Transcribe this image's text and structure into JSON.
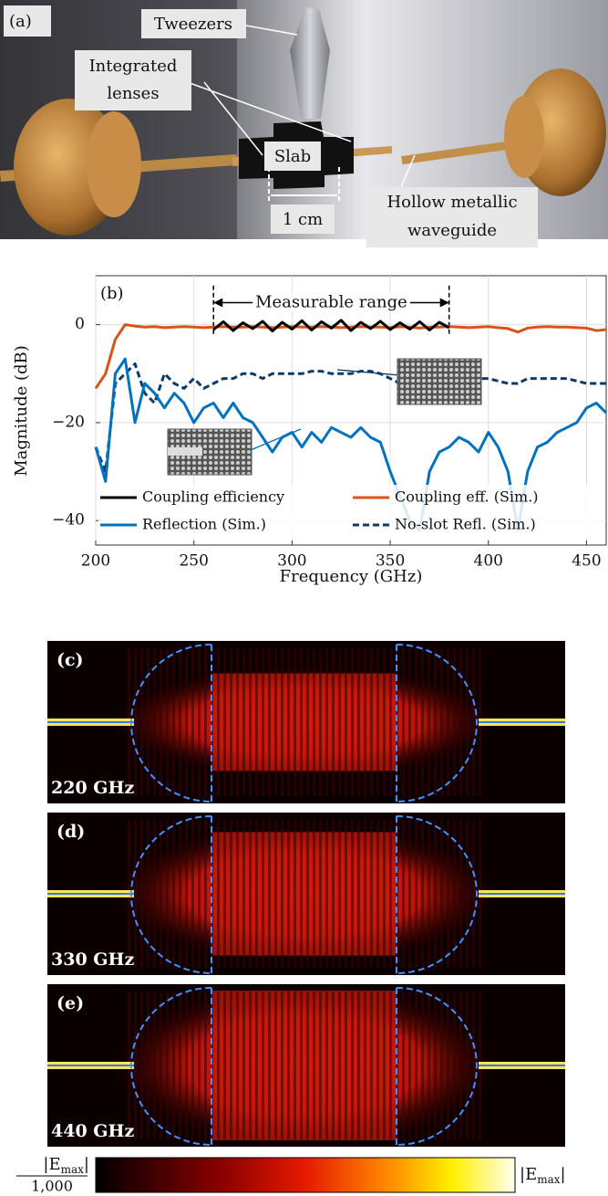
{
  "photo": {
    "panel_label": "(a)",
    "tweezers": "Tweezers",
    "lenses": [
      "Integrated",
      "lenses"
    ],
    "slab": "Slab",
    "scale": "1 cm",
    "waveguide": [
      "Hollow metallic",
      "waveguide"
    ]
  },
  "chart_data": {
    "type": "line",
    "panel_label": "(b)",
    "x_label": "Frequency (GHz)",
    "y_label": "Magnitude (dB)",
    "xlim": [
      200,
      460
    ],
    "xticks": [
      200,
      250,
      300,
      350,
      400,
      450
    ],
    "ylim": [
      -45,
      10
    ],
    "yticks": [
      {
        "value": -40,
        "label": "−40"
      },
      {
        "value": -20,
        "label": "−20"
      },
      0
    ],
    "grid": true,
    "legend": "lower center",
    "range_annotation": {
      "label": "Measurable range",
      "x": [
        260,
        380
      ]
    },
    "x": [
      200,
      205,
      210,
      215,
      220,
      225,
      230,
      235,
      240,
      245,
      250,
      255,
      260,
      265,
      270,
      275,
      280,
      285,
      290,
      295,
      300,
      305,
      310,
      315,
      320,
      325,
      330,
      335,
      340,
      345,
      350,
      355,
      360,
      365,
      370,
      375,
      380,
      385,
      390,
      395,
      400,
      405,
      410,
      415,
      420,
      425,
      430,
      435,
      440,
      445,
      450,
      455,
      460
    ],
    "series": [
      {
        "name": "Coupling efficiency",
        "color": "#000000",
        "linestyle": "solid",
        "values": [
          null,
          null,
          null,
          null,
          null,
          null,
          null,
          null,
          null,
          null,
          null,
          null,
          -1,
          0.6,
          -1.2,
          0.4,
          -0.8,
          0.7,
          -1.3,
          0.5,
          -0.9,
          0.8,
          -1.1,
          0.6,
          -0.7,
          0.9,
          -1.2,
          0.5,
          -0.8,
          0.7,
          -1,
          0.4,
          -0.9,
          0.6,
          -1.1,
          0.5,
          -0.6,
          null,
          null,
          null,
          null,
          null,
          null,
          null,
          null,
          null,
          null,
          null,
          null,
          null,
          null,
          null,
          null
        ]
      },
      {
        "name": "Coupling eff. (Sim.)",
        "color": "#d95319",
        "linestyle": "solid",
        "values": [
          -13,
          -10,
          -3,
          0,
          -0.3,
          -0.5,
          -0.4,
          -0.6,
          -0.5,
          -0.4,
          -0.5,
          -0.6,
          -0.5,
          -0.4,
          -0.5,
          -0.5,
          -0.4,
          -0.5,
          -0.6,
          -0.5,
          -0.4,
          -0.5,
          -0.5,
          -0.4,
          -0.5,
          -0.6,
          -0.5,
          -0.4,
          -0.5,
          -0.5,
          -0.6,
          -0.4,
          -0.5,
          -0.7,
          -0.5,
          -0.5,
          -0.4,
          -0.5,
          -0.6,
          -0.5,
          -0.4,
          -0.6,
          -0.8,
          -1.5,
          -0.7,
          -0.5,
          -0.4,
          -0.5,
          -0.5,
          -0.6,
          -0.7,
          -1.2,
          -1
        ]
      },
      {
        "name": "Reflection (Sim.)",
        "color": "#0072bd",
        "linestyle": "solid",
        "values": [
          -25,
          -32,
          -10,
          -7,
          -20,
          -12,
          -14,
          -17,
          -14,
          -16,
          -20,
          -17,
          -16,
          -19,
          -16,
          -19,
          -20,
          -23,
          -26,
          -23,
          -22,
          -25,
          -22,
          -24,
          -21,
          -22,
          -23,
          -21,
          -23,
          -24,
          -30,
          -35,
          -40,
          -42,
          -30,
          -26,
          -25,
          -23,
          -24,
          -26,
          -22,
          -25,
          -30,
          -42,
          -30,
          -25,
          -24,
          -22,
          -21,
          -20,
          -17,
          -16,
          -18
        ]
      },
      {
        "name": "No-slot Refl. (Sim.)",
        "color": "#0b3a6b",
        "linestyle": "dashed",
        "values": [
          -25,
          -30,
          -12,
          -10,
          -8,
          -14,
          -16,
          -10,
          -12,
          -13,
          -11,
          -13,
          -12,
          -11,
          -11,
          -10,
          -10,
          -11,
          -10,
          -10,
          -10,
          -10,
          -9.5,
          -9.5,
          -10,
          -10,
          -10,
          -9.5,
          -9.5,
          -10,
          -11,
          -12,
          -12,
          -11,
          -11,
          -11.5,
          -12,
          -12,
          -11,
          -11,
          -11,
          -11.5,
          -12,
          -12,
          -11,
          -11,
          -11,
          -11,
          -11,
          -11.5,
          -12,
          -12,
          -12
        ]
      }
    ]
  },
  "field_maps": [
    {
      "panel_label": "(c)",
      "frequency": "220 GHz"
    },
    {
      "panel_label": "(d)",
      "frequency": "330 GHz"
    },
    {
      "panel_label": "(e)",
      "frequency": "440 GHz"
    }
  ],
  "colorbar": {
    "low": {
      "numerator": [
        "|E",
        "max",
        "|"
      ],
      "denominator": "1,000"
    },
    "high": [
      "|E",
      "max",
      "|"
    ]
  }
}
